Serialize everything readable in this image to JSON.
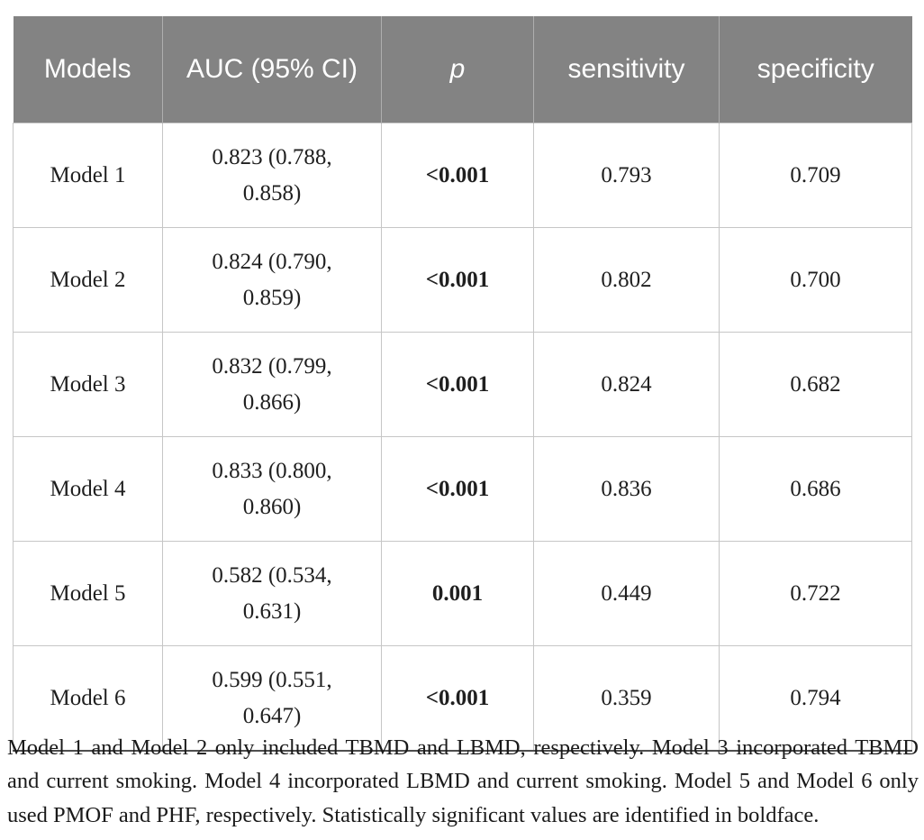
{
  "table": {
    "columns": [
      {
        "key": "model",
        "label": "Models"
      },
      {
        "key": "auc",
        "label": "AUC (95% CI)"
      },
      {
        "key": "p",
        "label": "p"
      },
      {
        "key": "sensitivity",
        "label": "sensitivity"
      },
      {
        "key": "specificity",
        "label": "specificity"
      }
    ],
    "rows": [
      {
        "model": "Model 1",
        "auc": "0.823 (0.788, 0.858)",
        "p": "<0.001",
        "sensitivity": "0.793",
        "specificity": "0.709"
      },
      {
        "model": "Model 2",
        "auc": "0.824 (0.790, 0.859)",
        "p": "<0.001",
        "sensitivity": "0.802",
        "specificity": "0.700"
      },
      {
        "model": "Model 3",
        "auc": "0.832 (0.799, 0.866)",
        "p": "<0.001",
        "sensitivity": "0.824",
        "specificity": "0.682"
      },
      {
        "model": "Model 4",
        "auc": "0.833 (0.800, 0.860)",
        "p": "<0.001",
        "sensitivity": "0.836",
        "specificity": "0.686"
      },
      {
        "model": "Model 5",
        "auc": "0.582 (0.534, 0.631)",
        "p": "0.001",
        "sensitivity": "0.449",
        "specificity": "0.722"
      },
      {
        "model": "Model 6",
        "auc": "0.599 (0.551, 0.647)",
        "p": "<0.001",
        "sensitivity": "0.359",
        "specificity": "0.794"
      }
    ]
  },
  "footnote": "Model 1 and Model 2 only included TBMD and LBMD, respectively. Model 3 incorporated TBMD and current smoking. Model 4 incorporated LBMD and current smoking. Model 5 and Model 6 only used PMOF and PHF, respectively. Statistically significant values are identified in boldface.",
  "colors": {
    "header_bg": "#838383",
    "header_text": "#ffffff",
    "body_text": "#1f1f1f",
    "cell_border": "#c6c6c6",
    "table_bottom_rule": "#4e4e4e"
  }
}
